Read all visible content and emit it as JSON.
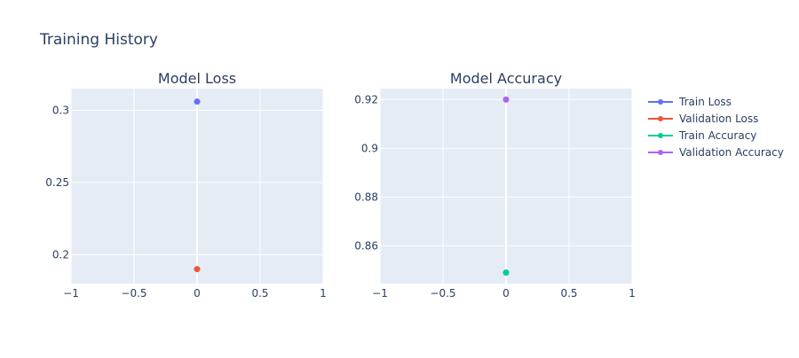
{
  "title": "Training History",
  "colors": {
    "plot_bg": "#e5ecf6",
    "grid": "#ffffff",
    "text": "#2a3f5f"
  },
  "legend": {
    "placement": "right",
    "items": [
      {
        "label": "Train Loss",
        "color": "#636efa"
      },
      {
        "label": "Validation Loss",
        "color": "#ef553b"
      },
      {
        "label": "Train Accuracy",
        "color": "#00cc96"
      },
      {
        "label": "Validation Accuracy",
        "color": "#ab63fa"
      }
    ]
  },
  "chart_data": [
    {
      "type": "scatter",
      "title": "Model Loss",
      "xlabel": "",
      "ylabel": "",
      "grid": true,
      "xlim": [
        -1,
        1
      ],
      "ylim": [
        0.18,
        0.315
      ],
      "x_ticks": [
        -1,
        -0.5,
        0,
        0.5,
        1
      ],
      "x_tick_labels": [
        "−1",
        "−0.5",
        "0",
        "0.5",
        "1"
      ],
      "y_ticks": [
        0.2,
        0.25,
        0.3
      ],
      "y_tick_labels": [
        "0.2",
        "0.25",
        "0.3"
      ],
      "series": [
        {
          "name": "Train Loss",
          "color": "#636efa",
          "x": [
            0
          ],
          "y": [
            0.306
          ]
        },
        {
          "name": "Validation Loss",
          "color": "#ef553b",
          "x": [
            0
          ],
          "y": [
            0.19
          ]
        }
      ]
    },
    {
      "type": "scatter",
      "title": "Model Accuracy",
      "xlabel": "",
      "ylabel": "",
      "grid": true,
      "xlim": [
        -1,
        1
      ],
      "ylim": [
        0.8445,
        0.9245
      ],
      "x_ticks": [
        -1,
        -0.5,
        0,
        0.5,
        1
      ],
      "x_tick_labels": [
        "−1",
        "−0.5",
        "0",
        "0.5",
        "1"
      ],
      "y_ticks": [
        0.86,
        0.88,
        0.9,
        0.92
      ],
      "y_tick_labels": [
        "0.86",
        "0.88",
        "0.9",
        "0.92"
      ],
      "series": [
        {
          "name": "Train Accuracy",
          "color": "#00cc96",
          "x": [
            0
          ],
          "y": [
            0.849
          ]
        },
        {
          "name": "Validation Accuracy",
          "color": "#ab63fa",
          "x": [
            0
          ],
          "y": [
            0.92
          ]
        }
      ]
    }
  ]
}
